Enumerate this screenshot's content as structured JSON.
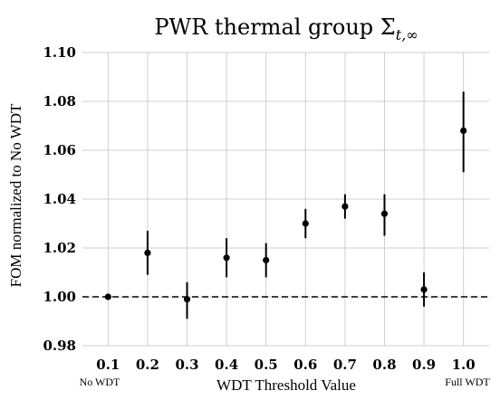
{
  "chart_data": {
    "type": "scatter",
    "title_main": "PWR thermal group ",
    "title_symbol": "Σ",
    "title_subscript": "t,∞",
    "xlabel": "WDT Threshold Value",
    "ylabel": "FOM normalized to No WDT",
    "x_left_note": "No WDT",
    "x_right_note": "Full WDT",
    "x_ticks": [
      0.1,
      0.2,
      0.3,
      0.4,
      0.5,
      0.6,
      0.7,
      0.8,
      0.9,
      1.0
    ],
    "x_tick_labels": [
      "0.1",
      "0.2",
      "0.3",
      "0.4",
      "0.5",
      "0.6",
      "0.7",
      "0.8",
      "0.9",
      "1.0"
    ],
    "xlim": [
      0.035,
      1.065
    ],
    "y_ticks": [
      0.98,
      1.0,
      1.02,
      1.04,
      1.06,
      1.08,
      1.1
    ],
    "y_tick_labels": [
      "0.98",
      "1.00",
      "1.02",
      "1.04",
      "1.06",
      "1.08",
      "1.10"
    ],
    "ylim": [
      0.98,
      1.1
    ],
    "grid": true,
    "reference_line": {
      "y": 1.0,
      "style": "dashed"
    },
    "points": [
      {
        "x": 0.1,
        "y": 1.0,
        "yerr_low": 1.0,
        "yerr_high": 1.0
      },
      {
        "x": 0.2,
        "y": 1.018,
        "yerr_low": 1.009,
        "yerr_high": 1.027
      },
      {
        "x": 0.3,
        "y": 0.999,
        "yerr_low": 0.991,
        "yerr_high": 1.006
      },
      {
        "x": 0.4,
        "y": 1.016,
        "yerr_low": 1.008,
        "yerr_high": 1.024
      },
      {
        "x": 0.5,
        "y": 1.015,
        "yerr_low": 1.008,
        "yerr_high": 1.022
      },
      {
        "x": 0.6,
        "y": 1.03,
        "yerr_low": 1.024,
        "yerr_high": 1.036
      },
      {
        "x": 0.7,
        "y": 1.037,
        "yerr_low": 1.032,
        "yerr_high": 1.042
      },
      {
        "x": 0.8,
        "y": 1.034,
        "yerr_low": 1.025,
        "yerr_high": 1.042
      },
      {
        "x": 0.9,
        "y": 1.003,
        "yerr_low": 0.996,
        "yerr_high": 1.01
      },
      {
        "x": 1.0,
        "y": 1.068,
        "yerr_low": 1.051,
        "yerr_high": 1.084
      }
    ]
  }
}
